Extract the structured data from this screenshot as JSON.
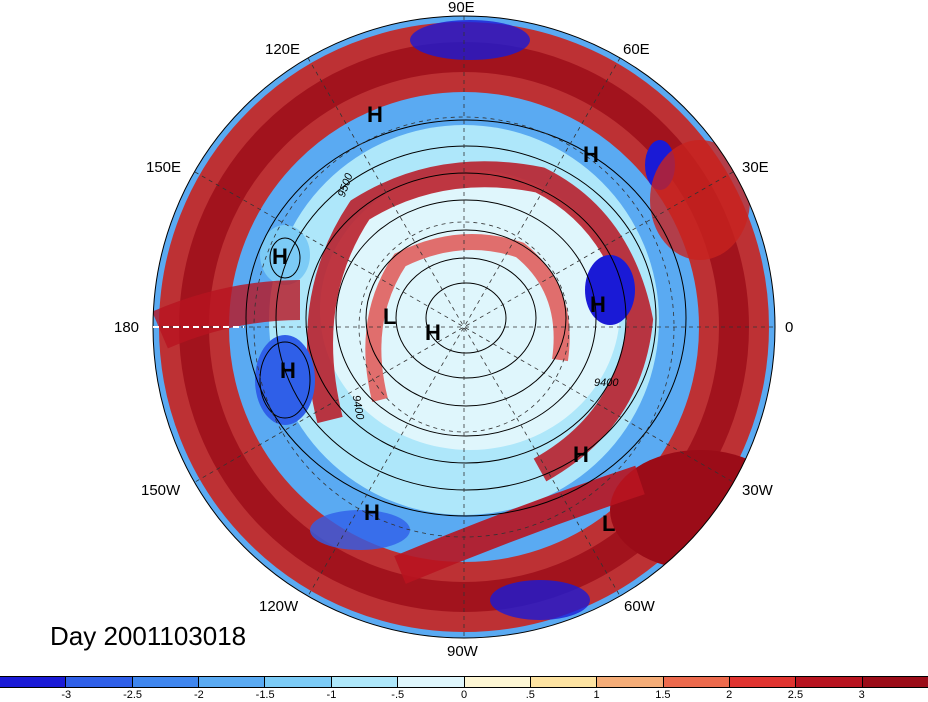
{
  "title": "Day 2001103018",
  "longitude_labels": {
    "n90e": "90E",
    "n120e": "120E",
    "n60e": "60E",
    "n150e": "150E",
    "n30e": "30E",
    "n180": "180",
    "n0": "0",
    "n150w": "150W",
    "n30w": "30W",
    "n120w": "120W",
    "n60w": "60W",
    "n90w": "90W"
  },
  "pressure_centers": [
    {
      "type": "H"
    },
    {
      "type": "H"
    },
    {
      "type": "H"
    },
    {
      "type": "H"
    },
    {
      "type": "H"
    },
    {
      "type": "H"
    },
    {
      "type": "H"
    },
    {
      "type": "H"
    },
    {
      "type": "L"
    },
    {
      "type": "L"
    }
  ],
  "contour_labels": [
    "9400",
    "9400",
    "9500"
  ],
  "colorbar": {
    "ticks": [
      "-3",
      "-2.5",
      "-2",
      "-1.5",
      "-1",
      "-.5",
      "0",
      ".5",
      "1",
      "1.5",
      "2",
      "2.5",
      "3"
    ],
    "colors": [
      "#1a1ad6",
      "#2f5fe8",
      "#3f86ee",
      "#5aaaf2",
      "#7ccbf6",
      "#aee7fa",
      "#dff6fc",
      "#fdf6d4",
      "#fde3a2",
      "#f5ad78",
      "#ec6a4d",
      "#e03430",
      "#b81420",
      "#9b0c18"
    ]
  }
}
